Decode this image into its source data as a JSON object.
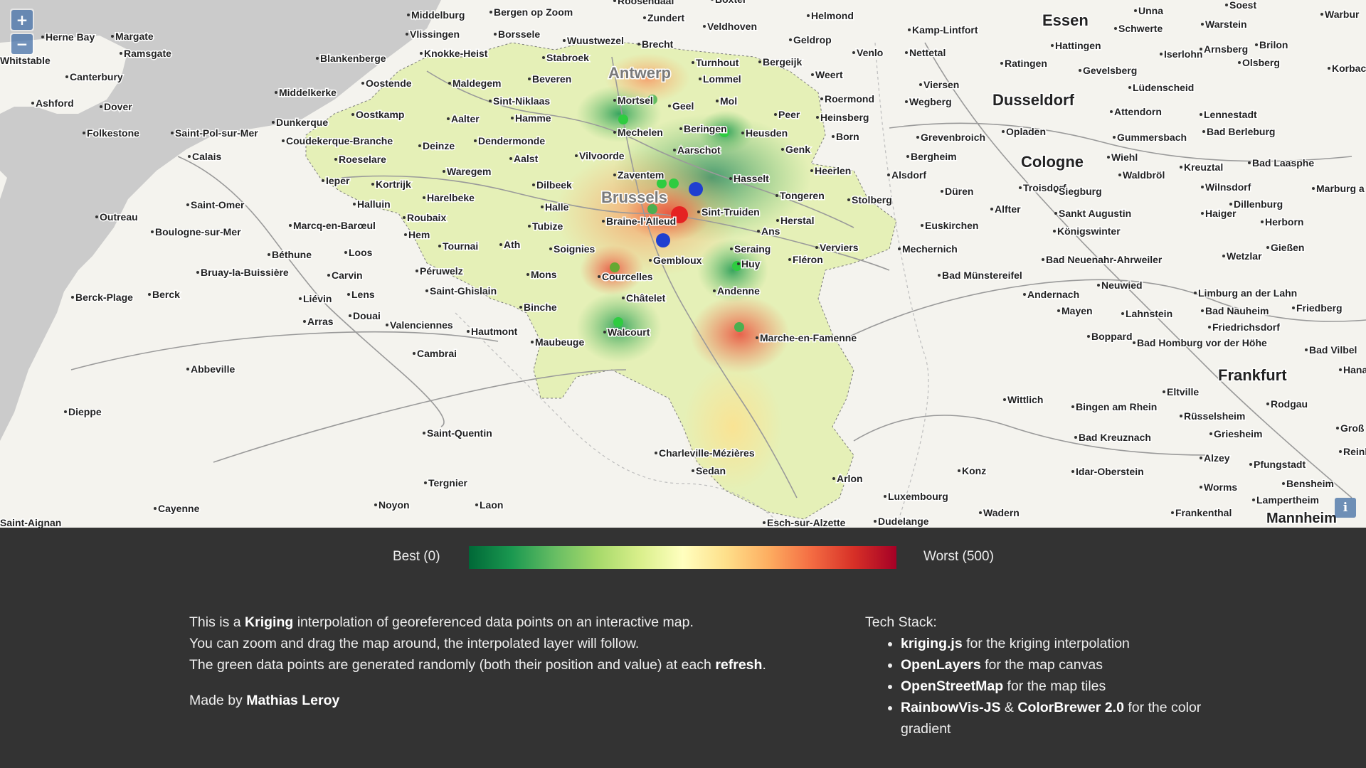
{
  "map": {
    "controls": {
      "zoom_in": "+",
      "zoom_out": "−",
      "info": "i"
    },
    "cities_major": [
      "Antwerp",
      "Brussels",
      "Essen",
      "Dusseldorf",
      "Cologne",
      "Frankfurt",
      "Mannheim"
    ],
    "cities": [
      "Roosendaal",
      "Boxtel",
      "Unna",
      "Soest",
      "Middelburg",
      "Bergen op Zoom",
      "Zundert",
      "Helmond",
      "Schwerte",
      "Warstein",
      "Warbur",
      "Herne Bay",
      "Margate",
      "Vlissingen",
      "Borssele",
      "Wuustwezel",
      "Brecht",
      "Veldhoven",
      "Geldrop",
      "Kamp-Lintfort",
      "Hattingen",
      "Iserlohn",
      "Arnsberg",
      "Brilon",
      "Ramsgate",
      "Whitstable",
      "Blankenberge",
      "Knokke-Heist",
      "Stabroek",
      "Venlo",
      "Nettetal",
      "Olsberg",
      "Korbac",
      "Canterbury",
      "Turnhout",
      "Bergeijk",
      "Weert",
      "Gevelsberg",
      "Lüdenscheid",
      "Maldegem",
      "Beveren",
      "Lommel",
      "Viersen",
      "Ratingen",
      "Middelkerke",
      "Oostende",
      "Sint-Niklaas",
      "Mortsel",
      "Roermond",
      "Wegberg",
      "Ashford",
      "Dover",
      "Oostkamp",
      "Hamme",
      "Geel",
      "Mol",
      "Peer",
      "Attendorn",
      "Lennestadt",
      "Dunkerque",
      "Aalter",
      "Heinsberg",
      "Folkestone",
      "Saint-Pol-sur-Mer",
      "Mechelen",
      "Beringen",
      "Heusden",
      "Born",
      "Opladen",
      "Gummersbach",
      "Bad Berleburg",
      "Coudekerque-Branche",
      "Dendermonde",
      "Grevenbroich",
      "Deinze",
      "Aarschot",
      "Genk",
      "Wiehl",
      "Calais",
      "Roeselare",
      "Aalst",
      "Vilvoorde",
      "Bergheim",
      "Kreuztal",
      "Bad Laasphe",
      "Waregem",
      "Heerlen",
      "Alsdorf",
      "Waldbröl",
      "Ieper",
      "Kortrijk",
      "Dilbeek",
      "Zaventem",
      "Hasselt",
      "Troisdorf",
      "Siegburg",
      "Wilnsdorf",
      "Marburg a",
      "Harelbeke",
      "Tongeren",
      "Stolberg",
      "Düren",
      "Saint-Omer",
      "Halluin",
      "Halle",
      "Sint-Truiden",
      "Alfter",
      "Sankt Augustin",
      "Dillenburg",
      "Outreau",
      "Roubaix",
      "Braine-l'Alleud",
      "Herstal",
      "Haiger",
      "Herborn",
      "Boulogne-sur-Mer",
      "Marcq-en-Barœul",
      "Hem",
      "Tubize",
      "Ans",
      "Euskirchen",
      "Königswinter",
      "Tournai",
      "Ath",
      "Soignies",
      "Seraing",
      "Verviers",
      "Mechernich",
      "Gießen",
      "Béthune",
      "Loos",
      "Gembloux",
      "Fléron",
      "Bad Neuenahr-Ahrweiler",
      "Wetzlar",
      "Bruay-la-Buissière",
      "Carvin",
      "Péruwelz",
      "Huy",
      "Bad Münstereifel",
      "Neuwied",
      "Berck-Plage",
      "Berck",
      "Liévin",
      "Lens",
      "Saint-Ghislain",
      "Mons",
      "Courcelles",
      "Andernach",
      "Andenne",
      "Limburg an der Lahn",
      "Friedberg",
      "Arras",
      "Douai",
      "Châtelet",
      "Mayen",
      "Lahnstein",
      "Bad Nauheim",
      "Valenciennes",
      "Binche",
      "Friedrichsdorf",
      "Hautmont",
      "Walcourt",
      "Maubeuge",
      "Marche-en-Famenne",
      "Boppard",
      "Bad Homburg vor der Höhe",
      "Bad Vilbel",
      "Cambrai",
      "Abbeville",
      "Hanau",
      "Eltville",
      "Wittlich",
      "Rodgau",
      "Bingen am Rhein",
      "Rüsselsheim",
      "Dieppe",
      "Saint-Quentin",
      "Griesheim",
      "Bad Kreuznach",
      "Groß",
      "Reinheim",
      "Charleville-Mézières",
      "Alzey",
      "Pfungstadt",
      "Sedan",
      "Konz",
      "Idar-Oberstein",
      "Arlon",
      "Tergnier",
      "Worms",
      "Bensheim",
      "Laon",
      "Luxembourg",
      "Cayenne",
      "Noyon",
      "Lampertheim",
      "Wadern",
      "Frankenthal",
      "Esch-sur-Alzette",
      "Dudelange",
      "Saint-Aignan"
    ]
  },
  "legend": {
    "best_label": "Best (0)",
    "worst_label": "Worst (500)",
    "gradient_colors": [
      "#006837",
      "#1a9850",
      "#66bd63",
      "#a6d96a",
      "#d9ef8b",
      "#ffffbf",
      "#fee08b",
      "#fdae61",
      "#f46d43",
      "#d73027",
      "#a50026"
    ]
  },
  "description": {
    "line1_before": "This is a ",
    "line1_link": "Kriging",
    "line1_after": " interpolation of georeferenced data points on an interactive map.",
    "line2": "You can zoom and drag the map around, the interpolated layer will follow.",
    "line3_before": "The green data points are generated randomly (both their position and value) at each ",
    "line3_link": "refresh",
    "line3_after": ".",
    "made_by_prefix": "Made by ",
    "made_by_link": "Mathias Leroy"
  },
  "tech_stack": {
    "title": "Tech Stack:",
    "items": [
      {
        "link": "kriging.js",
        "text": " for the kriging interpolation"
      },
      {
        "link": "OpenLayers",
        "text": " for the map canvas"
      },
      {
        "link": "OpenStreetMap",
        "text": " for the map tiles"
      },
      {
        "link": "RainbowVis-JS",
        "mid": " & ",
        "link2": "ColorBrewer 2.0",
        "text": " for the color gradient"
      }
    ]
  }
}
